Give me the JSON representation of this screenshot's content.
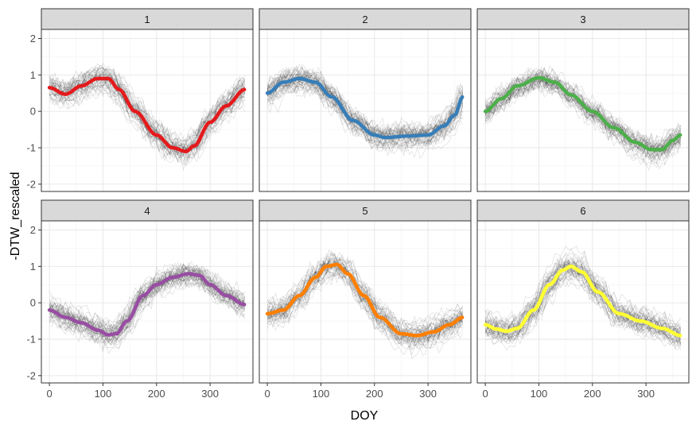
{
  "chart_data": {
    "type": "line",
    "xlabel": "DOY",
    "ylabel": "-DTW_rescaled",
    "xlim": [
      -15,
      380
    ],
    "ylim": [
      -2.2,
      2.25
    ],
    "x_ticks": [
      0,
      100,
      200,
      300
    ],
    "y_ticks": [
      -2,
      -1,
      0,
      1,
      2
    ],
    "grid": true,
    "legend": "none",
    "facet_layout": "2 rows x 3 columns",
    "background_traces": "many thin semi-transparent black per-well lines around each cluster mean",
    "panels": [
      {
        "label": "1",
        "color": "#e41a1c",
        "x": [
          0,
          30,
          60,
          90,
          110,
          130,
          160,
          200,
          230,
          255,
          270,
          300,
          330,
          365
        ],
        "y": [
          0.65,
          0.47,
          0.7,
          0.9,
          0.9,
          0.6,
          0.0,
          -0.65,
          -1.0,
          -1.1,
          -0.95,
          -0.3,
          0.15,
          0.6
        ]
      },
      {
        "label": "2",
        "color": "#377eb8",
        "x": [
          0,
          30,
          60,
          90,
          120,
          160,
          200,
          220,
          260,
          300,
          330,
          350,
          365
        ],
        "y": [
          0.5,
          0.8,
          0.9,
          0.8,
          0.4,
          -0.25,
          -0.65,
          -0.72,
          -0.68,
          -0.65,
          -0.4,
          -0.1,
          0.4
        ]
      },
      {
        "label": "3",
        "color": "#4daf4a",
        "x": [
          0,
          30,
          60,
          100,
          130,
          160,
          200,
          240,
          280,
          310,
          330,
          350,
          365
        ],
        "y": [
          0.0,
          0.35,
          0.7,
          0.92,
          0.8,
          0.45,
          0.0,
          -0.45,
          -0.85,
          -1.05,
          -1.05,
          -0.8,
          -0.65
        ]
      },
      {
        "label": "4",
        "color": "#984ea3",
        "x": [
          0,
          30,
          60,
          90,
          110,
          125,
          145,
          175,
          200,
          230,
          260,
          280,
          300,
          330,
          365
        ],
        "y": [
          -0.2,
          -0.4,
          -0.55,
          -0.75,
          -0.88,
          -0.85,
          -0.5,
          0.2,
          0.5,
          0.7,
          0.8,
          0.75,
          0.5,
          0.2,
          -0.05
        ]
      },
      {
        "label": "5",
        "color": "#ff7f00",
        "x": [
          0,
          30,
          60,
          90,
          110,
          130,
          150,
          180,
          210,
          250,
          280,
          310,
          340,
          365
        ],
        "y": [
          -0.3,
          -0.2,
          0.2,
          0.7,
          1.0,
          1.05,
          0.8,
          0.2,
          -0.4,
          -0.85,
          -0.9,
          -0.8,
          -0.6,
          -0.4
        ]
      },
      {
        "label": "6",
        "color": "#ffff33",
        "x": [
          0,
          20,
          40,
          60,
          90,
          120,
          145,
          160,
          180,
          210,
          250,
          290,
          330,
          365
        ],
        "y": [
          -0.6,
          -0.72,
          -0.78,
          -0.7,
          -0.2,
          0.5,
          0.9,
          1.0,
          0.85,
          0.3,
          -0.3,
          -0.5,
          -0.7,
          -0.9
        ]
      }
    ]
  }
}
